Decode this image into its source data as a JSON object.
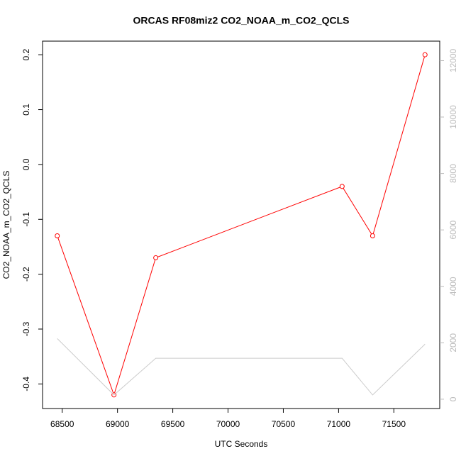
{
  "chart_data": {
    "type": "line",
    "title": "ORCAS RF08miz2 CO2_NOAA_m_CO2_QCLS",
    "x_label": "UTC Seconds",
    "y_label": "CO2_NOAA_m_CO2_QCLS",
    "x": [
      68455,
      68968,
      69346,
      71032,
      71308,
      71782
    ],
    "series": [
      {
        "values": [
          -0.13,
          -0.42,
          -0.17,
          -0.04,
          -0.13,
          0.2
        ],
        "color": "#ff0000",
        "markers": true
      },
      {
        "values": [
          2150,
          150,
          1450,
          1450,
          150,
          1950
        ],
        "color": "#cccccc",
        "axis": "y2",
        "markers": false
      }
    ],
    "xlim": [
      68322,
      71915
    ],
    "xticks": [
      68500,
      69000,
      69500,
      70000,
      70500,
      71000,
      71500
    ],
    "ylim": [
      -0.4448,
      0.2248
    ],
    "yticks": [
      -0.4,
      -0.3,
      -0.2,
      -0.1,
      {
        "value": 0,
        "label": "0.0"
      },
      0.1,
      0.2
    ],
    "y2lim": [
      -330,
      12690
    ],
    "y2ticks": [
      0,
      2000,
      4000,
      6000,
      8000,
      10000,
      12000
    ]
  }
}
